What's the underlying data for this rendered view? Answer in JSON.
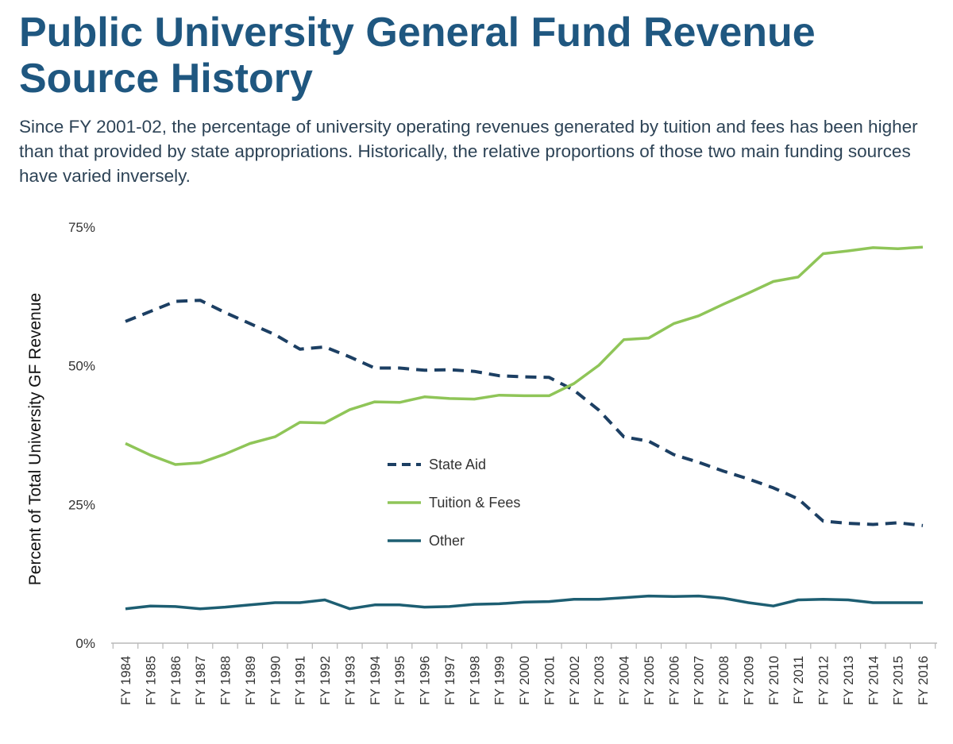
{
  "title": "Public University General Fund Revenue Source History",
  "subtitle": "Since FY 2001-02, the percentage of university operating revenues generated by tuition and fees has been higher than that provided by state appropriations.  Historically, the relative proportions of those two main funding sources have varied inversely.",
  "chart_data": {
    "type": "line",
    "ylabel": "Percent of Total University GF Revenue",
    "ylim": [
      0,
      75
    ],
    "yticks": [
      0,
      25,
      50,
      75
    ],
    "ytick_labels": [
      "0%",
      "25%",
      "50%",
      "75%"
    ],
    "grid": false,
    "legend_position": "center",
    "categories": [
      "FY 1984",
      "FY 1985",
      "FY 1986",
      "FY 1987",
      "FY 1988",
      "FY 1989",
      "FY 1990",
      "FY 1991",
      "FY 1992",
      "FY 1993",
      "FY 1994",
      "FY 1995",
      "FY 1996",
      "FY 1997",
      "FY 1998",
      "FY 1999",
      "FY 2000",
      "FY 2001",
      "FY 2002",
      "FY 2003",
      "FY 2004",
      "FY 2005",
      "FY 2006",
      "FY 2007",
      "FY 2008",
      "FY 2009",
      "FY 2010",
      "FY 2011",
      "FY 2012",
      "FY 2013",
      "FY 2014",
      "FY 2015",
      "FY 2016"
    ],
    "series": [
      {
        "name": "State Aid",
        "color": "#1c3f63",
        "style": "dashed",
        "values": [
          58,
          59.8,
          61.6,
          61.8,
          59.6,
          57.6,
          55.6,
          53,
          53.4,
          51.6,
          49.6,
          49.6,
          49.2,
          49.3,
          49,
          48.2,
          48,
          47.9,
          45.6,
          42,
          37.2,
          36.4,
          34,
          32.6,
          31,
          29.6,
          28,
          26,
          22,
          21.6,
          21.4,
          21.7,
          21.2
        ]
      },
      {
        "name": "Tuition & Fees",
        "color": "#8fc558",
        "style": "solid",
        "values": [
          36,
          33.9,
          32.2,
          32.5,
          34.1,
          36,
          37.2,
          39.8,
          39.7,
          42.1,
          43.5,
          43.4,
          44.4,
          44.1,
          44,
          44.7,
          44.6,
          44.6,
          46.8,
          50.1,
          54.7,
          55,
          57.6,
          59,
          61.1,
          63.1,
          65.2,
          66,
          70.2,
          70.7,
          71.3,
          71.1,
          71.4
        ]
      },
      {
        "name": "Other",
        "color": "#1d5e72",
        "style": "solid",
        "values": [
          6.2,
          6.7,
          6.6,
          6.2,
          6.5,
          6.9,
          7.3,
          7.3,
          7.8,
          6.2,
          6.9,
          6.9,
          6.5,
          6.6,
          7,
          7.1,
          7.4,
          7.5,
          7.9,
          7.9,
          8.2,
          8.5,
          8.4,
          8.5,
          8.1,
          7.3,
          6.7,
          7.8,
          7.9,
          7.8,
          7.3,
          7.3,
          7.3
        ]
      }
    ]
  }
}
